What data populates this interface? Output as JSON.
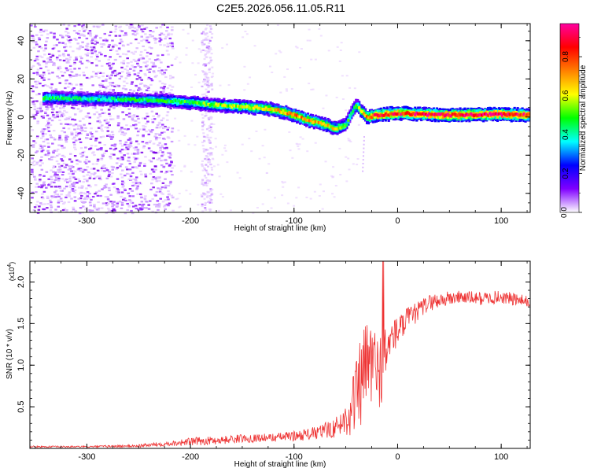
{
  "title": "C2E5.2026.056.11.05.R11",
  "chart_data": [
    {
      "type": "heatmap",
      "xlabel": "Height of straight line (km)",
      "ylabel": "Frequency (Hz)",
      "xlim": [
        -355,
        128
      ],
      "ylim": [
        -50,
        49
      ],
      "x_ticks": [
        -300,
        -200,
        -100,
        0,
        100
      ],
      "y_ticks": [
        -40,
        -20,
        0,
        20,
        40
      ],
      "x_tick_labels": [
        "-300",
        "-200",
        "-100",
        "0",
        "100"
      ],
      "y_tick_labels": [
        "-40",
        "-20",
        "0",
        "20",
        "40"
      ],
      "grid": false,
      "colorbar": {
        "label": "Normalized spectral amplitude",
        "range": [
          0,
          0.97
        ],
        "ticks": [
          0,
          0.2,
          0.4,
          0.6,
          0.8
        ],
        "tick_labels": [
          "0.0",
          "0.2",
          "0.4",
          "0.6",
          "0.8"
        ],
        "colors": [
          "#ffffff",
          "#8000ff",
          "#0000ff",
          "#00ffff",
          "#00ff00",
          "#ffff00",
          "#ff8000",
          "#ff0000",
          "#ff00a0"
        ]
      },
      "ridge": {
        "x": [
          -340,
          -300,
          -250,
          -220,
          -200,
          -170,
          -140,
          -120,
          -100,
          -85,
          -70,
          -60,
          -50,
          -45,
          -40,
          -30,
          -20,
          0,
          50,
          100,
          125
        ],
        "y": [
          10,
          9.5,
          9,
          8.5,
          7.5,
          6,
          5,
          4,
          1,
          -2,
          -4,
          -6,
          -4,
          2,
          6,
          0,
          1,
          2,
          1,
          1.5,
          1
        ],
        "amplitude": [
          0.45,
          0.4,
          0.45,
          0.45,
          0.5,
          0.55,
          0.6,
          0.65,
          0.7,
          0.7,
          0.65,
          0.6,
          0.5,
          0.45,
          0.5,
          0.75,
          0.85,
          0.85,
          0.9,
          0.9,
          0.85
        ]
      },
      "noise_region": {
        "x_range": [
          -355,
          -218
        ],
        "y_range": [
          -50,
          49
        ],
        "amplitude": 0.12
      },
      "secondary_noise": {
        "x_range": [
          -190,
          -180
        ],
        "y_range": [
          -50,
          49
        ],
        "amplitude": 0.08
      }
    },
    {
      "type": "line",
      "xlabel": "Height of straight line (km)",
      "ylabel": "SNR (10 * v/v)",
      "y_multiplier": "(x10",
      "y_multiplier_exponent": "4",
      "y_multiplier_close": ")",
      "xlim": [
        -355,
        128
      ],
      "ylim": [
        0,
        2.25
      ],
      "x_ticks": [
        -300,
        -200,
        -100,
        0,
        100
      ],
      "y_ticks": [
        0.5,
        1.0,
        1.5,
        2.0
      ],
      "x_tick_labels": [
        "-300",
        "-200",
        "-100",
        "0",
        "100"
      ],
      "y_tick_labels": [
        "0.5",
        "1.0",
        "1.5",
        "2.0"
      ],
      "grid": false,
      "series": [
        {
          "color": "#ee3333",
          "x": [
            -355,
            -300,
            -250,
            -220,
            -200,
            -170,
            -150,
            -120,
            -100,
            -80,
            -60,
            -50,
            -45,
            -40,
            -35,
            -30,
            -25,
            -20,
            -15,
            -10,
            -5,
            0,
            10,
            20,
            30,
            40,
            60,
            80,
            100,
            128
          ],
          "y": [
            0.02,
            0.02,
            0.03,
            0.06,
            0.08,
            0.1,
            0.12,
            0.13,
            0.15,
            0.18,
            0.25,
            0.35,
            0.5,
            0.6,
            0.8,
            1.0,
            1.05,
            0.9,
            1.0,
            1.2,
            1.35,
            1.4,
            1.55,
            1.65,
            1.75,
            1.78,
            1.82,
            1.8,
            1.82,
            1.75
          ],
          "spread": [
            0.01,
            0.01,
            0.02,
            0.03,
            0.05,
            0.05,
            0.05,
            0.05,
            0.06,
            0.08,
            0.12,
            0.2,
            0.35,
            0.5,
            0.55,
            0.6,
            0.55,
            0.5,
            0.45,
            0.3,
            0.2,
            0.2,
            0.15,
            0.12,
            0.1,
            0.1,
            0.08,
            0.08,
            0.08,
            0.08
          ]
        }
      ]
    }
  ]
}
